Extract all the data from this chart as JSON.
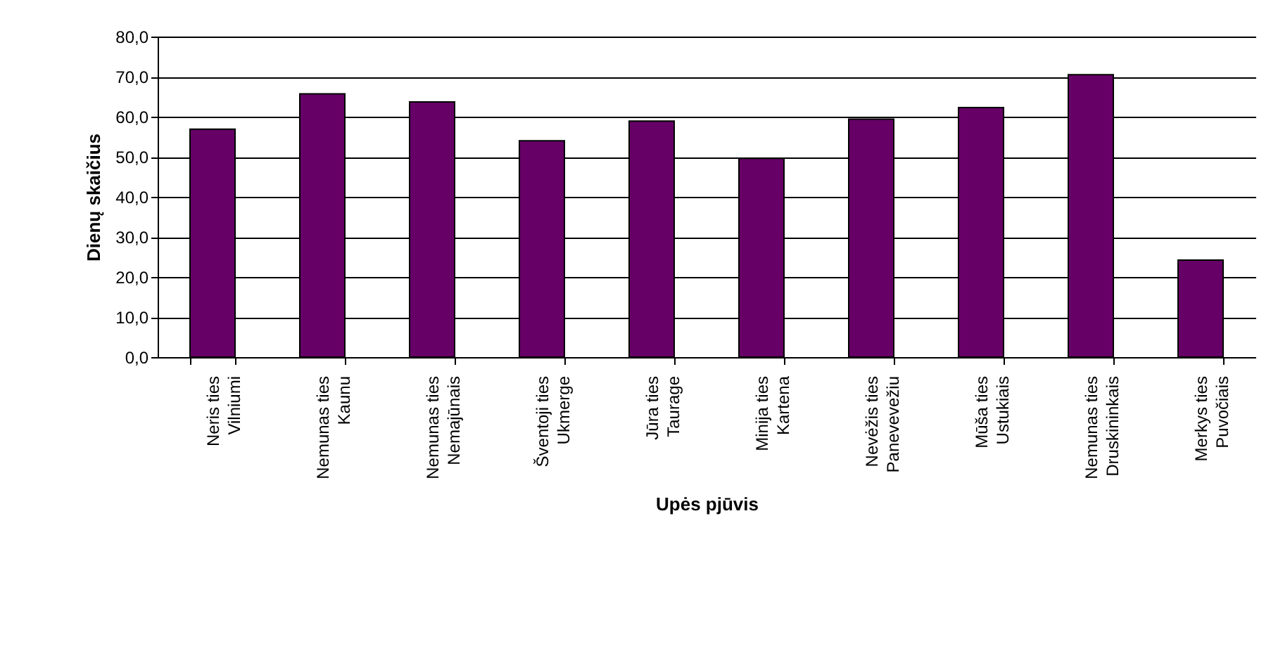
{
  "chart_data": {
    "type": "bar",
    "xlabel": "Upės pjūvis",
    "ylabel": "Dienų skaičius",
    "categories": [
      "Neris ties\nVilniumi",
      "Nemunas ties\nKaunu",
      "Nemunas ties\nNemajūnais",
      "Šventoji ties\nUkmerge",
      "Jūra ties\nTaurage",
      "Minija ties\nKartena",
      "Nevėžis ties\nPanevevežiu",
      "Mūša ties\nUstukiais",
      "Nemunas ties\nDruskininkais",
      "Merkys ties\nPuvočiais"
    ],
    "values": [
      56.9,
      65.7,
      63.7,
      54.0,
      58.9,
      49.6,
      59.4,
      62.3,
      70.5,
      24.2
    ],
    "color": "#660066",
    "ylim": [
      0,
      80
    ],
    "yticks": [
      {
        "value": 0,
        "label": "0,0"
      },
      {
        "value": 10,
        "label": "10,0"
      },
      {
        "value": 20,
        "label": "20,0"
      },
      {
        "value": 30,
        "label": "30,0"
      },
      {
        "value": 40,
        "label": "40,0"
      },
      {
        "value": 50,
        "label": "50,0"
      },
      {
        "value": 60,
        "label": "60,0"
      },
      {
        "value": 70,
        "label": "70,0"
      },
      {
        "value": 80,
        "label": "80,0"
      }
    ],
    "grid": "y"
  }
}
